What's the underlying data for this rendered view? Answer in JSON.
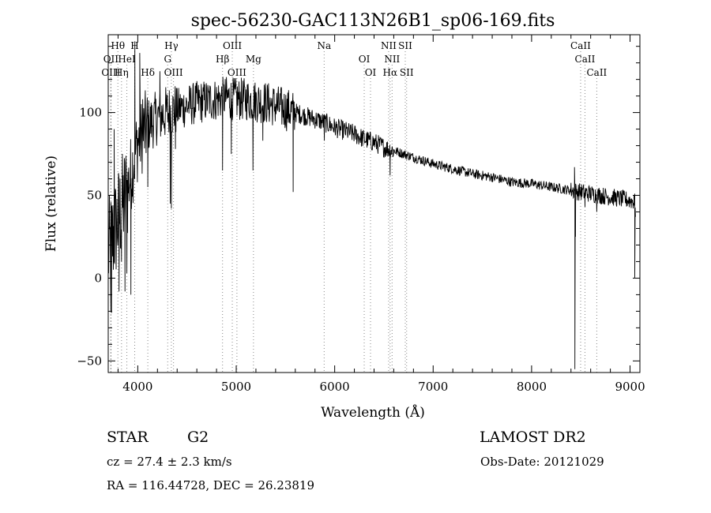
{
  "chart_data": {
    "type": "line",
    "title": "spec-56230-GAC113N26B1_sp06-169.fits",
    "xlabel": "Wavelength (Å)",
    "ylabel": "Flux (relative)",
    "xlim": [
      3700,
      9100
    ],
    "ylim": [
      -57,
      147
    ],
    "xticks": [
      4000,
      5000,
      6000,
      7000,
      8000,
      9000
    ],
    "yticks": [
      -50,
      0,
      50,
      100
    ],
    "grid": false,
    "legend": "none",
    "continuum": {
      "x": [
        3700,
        3800,
        3900,
        4000,
        4100,
        4200,
        4300,
        4400,
        4500,
        4600,
        4700,
        4800,
        4900,
        5000,
        5100,
        5200,
        5300,
        5400,
        5500,
        5600,
        5700,
        5800,
        5900,
        6000,
        6100,
        6200,
        6300,
        6400,
        6500,
        6600,
        6700,
        6800,
        6900,
        7000,
        7200,
        7400,
        7600,
        7800,
        8000,
        8200,
        8400,
        8600,
        8800,
        9000,
        9050
      ],
      "y": [
        15,
        35,
        55,
        82,
        92,
        97,
        100,
        102,
        104,
        106,
        107,
        108,
        109,
        108,
        108,
        107,
        106,
        104,
        102,
        100,
        98,
        96,
        94,
        91,
        89,
        87,
        84,
        82,
        79,
        77,
        75,
        73,
        71,
        69,
        66,
        63,
        61,
        58,
        57,
        55,
        53,
        51,
        49,
        47,
        46
      ]
    },
    "features": [
      {
        "x": 3727,
        "y": -20
      },
      {
        "x": 3733,
        "y": -21
      },
      {
        "x": 3760,
        "y": 90
      },
      {
        "x": 3810,
        "y": -8
      },
      {
        "x": 3835,
        "y": 10
      },
      {
        "x": 3870,
        "y": -8
      },
      {
        "x": 3889,
        "y": 3
      },
      {
        "x": 3930,
        "y": -10
      },
      {
        "x": 3970,
        "y": 143
      },
      {
        "x": 4020,
        "y": 136
      },
      {
        "x": 4050,
        "y": 108
      },
      {
        "x": 4102,
        "y": 55
      },
      {
        "x": 4225,
        "y": 125
      },
      {
        "x": 4330,
        "y": 45
      },
      {
        "x": 4341,
        "y": 42
      },
      {
        "x": 4383,
        "y": 78
      },
      {
        "x": 4861,
        "y": 65
      },
      {
        "x": 4950,
        "y": 75
      },
      {
        "x": 5170,
        "y": 65
      },
      {
        "x": 5270,
        "y": 83
      },
      {
        "x": 5578,
        "y": 52
      },
      {
        "x": 5895,
        "y": 83
      },
      {
        "x": 6563,
        "y": 62
      },
      {
        "x": 8436,
        "y": 67
      },
      {
        "x": 8440,
        "y": -55
      },
      {
        "x": 8446,
        "y": 25
      },
      {
        "x": 8500,
        "y": 55
      },
      {
        "x": 8542,
        "y": 43
      },
      {
        "x": 8662,
        "y": 40
      },
      {
        "x": 9040,
        "y": 50
      },
      {
        "x": 9048,
        "y": 0
      },
      {
        "x": 9055,
        "y": 37
      }
    ],
    "lines": [
      {
        "label": "Hθ",
        "x": 3798,
        "row": 1
      },
      {
        "label": "H",
        "x": 3969,
        "row": 1
      },
      {
        "label": "Hγ",
        "x": 4341,
        "row": 1
      },
      {
        "label": "OIII",
        "x": 4960,
        "row": 1
      },
      {
        "label": "Na",
        "x": 5893,
        "row": 1
      },
      {
        "label": "NII",
        "x": 6548,
        "row": 1
      },
      {
        "label": "SII",
        "x": 6717,
        "row": 1
      },
      {
        "label": "CaII",
        "x": 8498,
        "row": 1
      },
      {
        "label": "OII",
        "x": 3727,
        "row": 2
      },
      {
        "label": "HeI",
        "x": 3889,
        "row": 2
      },
      {
        "label": "G",
        "x": 4304,
        "row": 2
      },
      {
        "label": "Hβ",
        "x": 4861,
        "row": 2
      },
      {
        "label": "Mg",
        "x": 5175,
        "row": 2
      },
      {
        "label": "OI",
        "x": 6300,
        "row": 2
      },
      {
        "label": "NII",
        "x": 6583,
        "row": 2
      },
      {
        "label": "CaII",
        "x": 8542,
        "row": 2
      },
      {
        "label": "OIII",
        "x": 3727,
        "row": 3
      },
      {
        "label": "Hη",
        "x": 3835,
        "row": 3
      },
      {
        "label": "Hδ",
        "x": 4102,
        "row": 3
      },
      {
        "label": "OIII",
        "x": 4363,
        "row": 3
      },
      {
        "label": "OIII",
        "x": 5007,
        "row": 3
      },
      {
        "label": "OI",
        "x": 6364,
        "row": 3
      },
      {
        "label": "Hα",
        "x": 6563,
        "row": 3
      },
      {
        "label": "SII",
        "x": 6731,
        "row": 3
      },
      {
        "label": "CaII",
        "x": 8662,
        "row": 3
      }
    ]
  },
  "info": {
    "object_class": "STAR",
    "subclass": "G2",
    "survey": "LAMOST DR2",
    "redshift": "cz = 27.4 ± 2.3 km/s",
    "obs_date": "Obs-Date: 20121029",
    "coords": "RA = 116.44728, DEC =  26.23819"
  }
}
